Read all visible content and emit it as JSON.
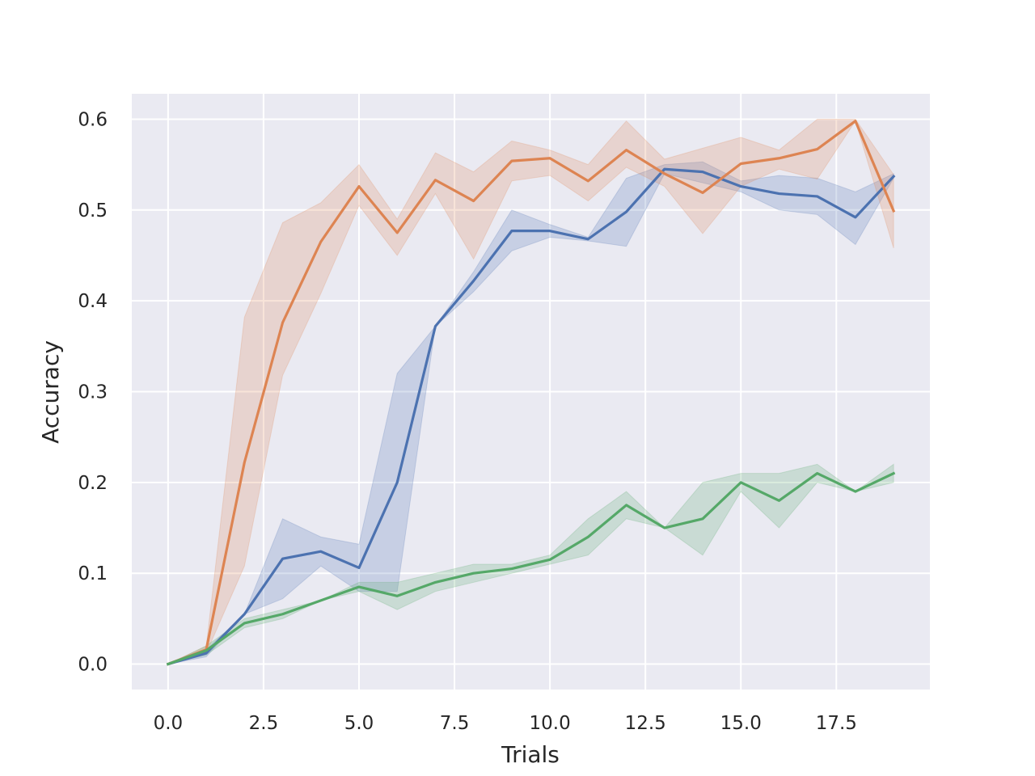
{
  "chart_data": {
    "type": "line",
    "xlabel": "Trials",
    "ylabel": "Accuracy",
    "xlim": [
      -0.95,
      19.95
    ],
    "ylim": [
      -0.028,
      0.628
    ],
    "xticks": [
      0.0,
      2.5,
      5.0,
      7.5,
      10.0,
      12.5,
      15.0,
      17.5
    ],
    "xtick_labels": [
      "0.0",
      "2.5",
      "5.0",
      "7.5",
      "10.0",
      "12.5",
      "15.0",
      "17.5"
    ],
    "yticks": [
      0.0,
      0.1,
      0.2,
      0.3,
      0.4,
      0.5,
      0.6
    ],
    "ytick_labels": [
      "0.0",
      "0.1",
      "0.2",
      "0.3",
      "0.4",
      "0.5",
      "0.6"
    ],
    "grid": true,
    "background": "#eaeaf2",
    "x": [
      0,
      1,
      2,
      3,
      4,
      5,
      6,
      7,
      8,
      9,
      10,
      11,
      12,
      13,
      14,
      15,
      16,
      17,
      18,
      19
    ],
    "series": [
      {
        "color": "#4c72b0",
        "values": [
          0.0,
          0.012,
          0.055,
          0.116,
          0.124,
          0.106,
          0.2,
          0.372,
          0.422,
          0.477,
          0.477,
          0.468,
          0.498,
          0.545,
          0.542,
          0.526,
          0.518,
          0.515,
          0.492,
          0.537
        ],
        "lower": [
          0.0,
          0.008,
          0.055,
          0.072,
          0.108,
          0.08,
          0.08,
          0.372,
          0.41,
          0.455,
          0.47,
          0.466,
          0.46,
          0.54,
          0.53,
          0.52,
          0.5,
          0.495,
          0.462,
          0.535
        ],
        "upper": [
          0.0,
          0.016,
          0.055,
          0.16,
          0.14,
          0.132,
          0.32,
          0.372,
          0.432,
          0.5,
          0.484,
          0.47,
          0.535,
          0.55,
          0.553,
          0.532,
          0.538,
          0.535,
          0.52,
          0.54
        ]
      },
      {
        "color": "#dd8452",
        "values": [
          0.0,
          0.016,
          0.222,
          0.376,
          0.465,
          0.526,
          0.475,
          0.533,
          0.51,
          0.554,
          0.557,
          0.532,
          0.566,
          0.54,
          0.519,
          0.551,
          0.557,
          0.567,
          0.598,
          0.499
        ],
        "lower": [
          0.0,
          0.012,
          0.108,
          0.318,
          0.408,
          0.505,
          0.45,
          0.518,
          0.446,
          0.532,
          0.538,
          0.51,
          0.547,
          0.526,
          0.474,
          0.526,
          0.545,
          0.534,
          0.598,
          0.458
        ],
        "upper": [
          0.0,
          0.02,
          0.382,
          0.486,
          0.508,
          0.55,
          0.49,
          0.563,
          0.542,
          0.576,
          0.566,
          0.55,
          0.598,
          0.556,
          0.568,
          0.58,
          0.566,
          0.6,
          0.6,
          0.539
        ]
      },
      {
        "color": "#55a868",
        "values": [
          0.0,
          0.015,
          0.045,
          0.055,
          0.07,
          0.085,
          0.075,
          0.09,
          0.1,
          0.105,
          0.115,
          0.14,
          0.175,
          0.15,
          0.16,
          0.2,
          0.18,
          0.21,
          0.19,
          0.21
        ],
        "lower": [
          0.0,
          0.01,
          0.04,
          0.05,
          0.07,
          0.08,
          0.06,
          0.08,
          0.09,
          0.1,
          0.11,
          0.12,
          0.16,
          0.15,
          0.12,
          0.19,
          0.15,
          0.2,
          0.19,
          0.2
        ],
        "upper": [
          0.0,
          0.02,
          0.05,
          0.06,
          0.07,
          0.09,
          0.09,
          0.1,
          0.11,
          0.11,
          0.12,
          0.16,
          0.19,
          0.15,
          0.2,
          0.21,
          0.21,
          0.22,
          0.19,
          0.22
        ]
      }
    ]
  }
}
